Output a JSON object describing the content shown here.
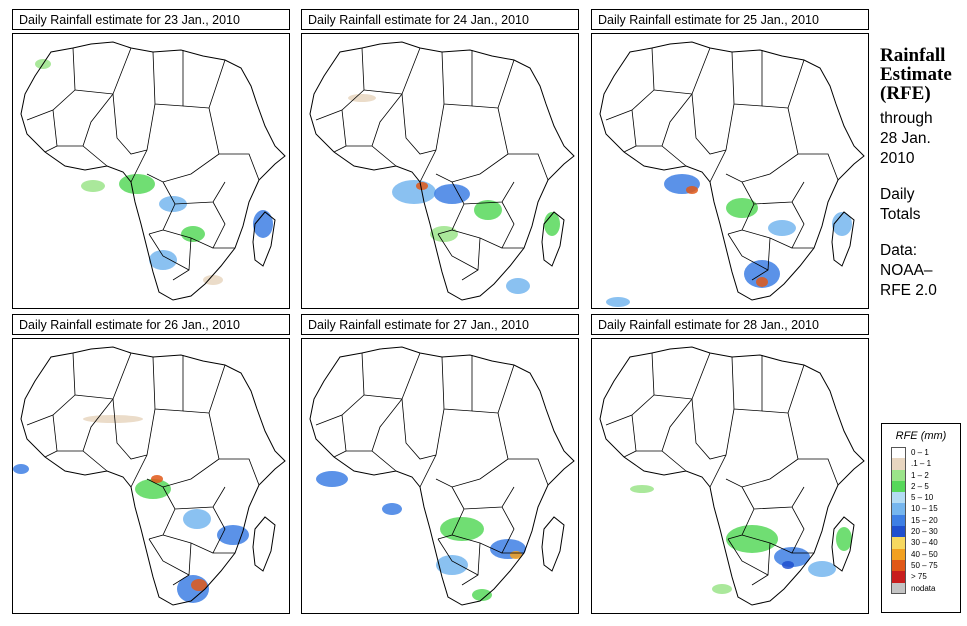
{
  "panels": [
    {
      "title": "Daily Rainfall estimate for  23 Jan., 2010"
    },
    {
      "title": "Daily Rainfall estimate for  24 Jan., 2010"
    },
    {
      "title": "Daily Rainfall estimate for  25 Jan., 2010"
    },
    {
      "title": "Daily Rainfall estimate for  26 Jan., 2010"
    },
    {
      "title": "Daily Rainfall estimate for  27 Jan., 2010"
    },
    {
      "title": "Daily Rainfall estimate for  28 Jan., 2010"
    }
  ],
  "side": {
    "title_line1": "Rainfall",
    "title_line2": "Estimate",
    "title_line3": "(RFE)",
    "through_line1": "through",
    "through_line2": "28 Jan.",
    "through_line3": "2010",
    "daily_line1": "Daily",
    "daily_line2": "Totals",
    "data_line1": "Data:",
    "data_line2": "NOAA–",
    "data_line3": "RFE 2.0"
  },
  "legend": {
    "title": "RFE (mm)",
    "items": [
      {
        "label": "0 – 1",
        "color": "#ffffff"
      },
      {
        "label": ".1 – 1",
        "color": "#e8d6c0"
      },
      {
        "label": "1 – 2",
        "color": "#9be48a"
      },
      {
        "label": "2 – 5",
        "color": "#57d85a"
      },
      {
        "label": "5 – 10",
        "color": "#b4dcf4"
      },
      {
        "label": "10 – 15",
        "color": "#76b6ee"
      },
      {
        "label": "15 – 20",
        "color": "#3e7fe4"
      },
      {
        "label": "20 – 30",
        "color": "#1f4fce"
      },
      {
        "label": "30 – 40",
        "color": "#f6d860"
      },
      {
        "label": "40 – 50",
        "color": "#f2a020"
      },
      {
        "label": "50 – 75",
        "color": "#e05818"
      },
      {
        "label": "> 75",
        "color": "#c81e1e"
      },
      {
        "label": "nodata",
        "color": "#c4c4c4"
      }
    ]
  }
}
